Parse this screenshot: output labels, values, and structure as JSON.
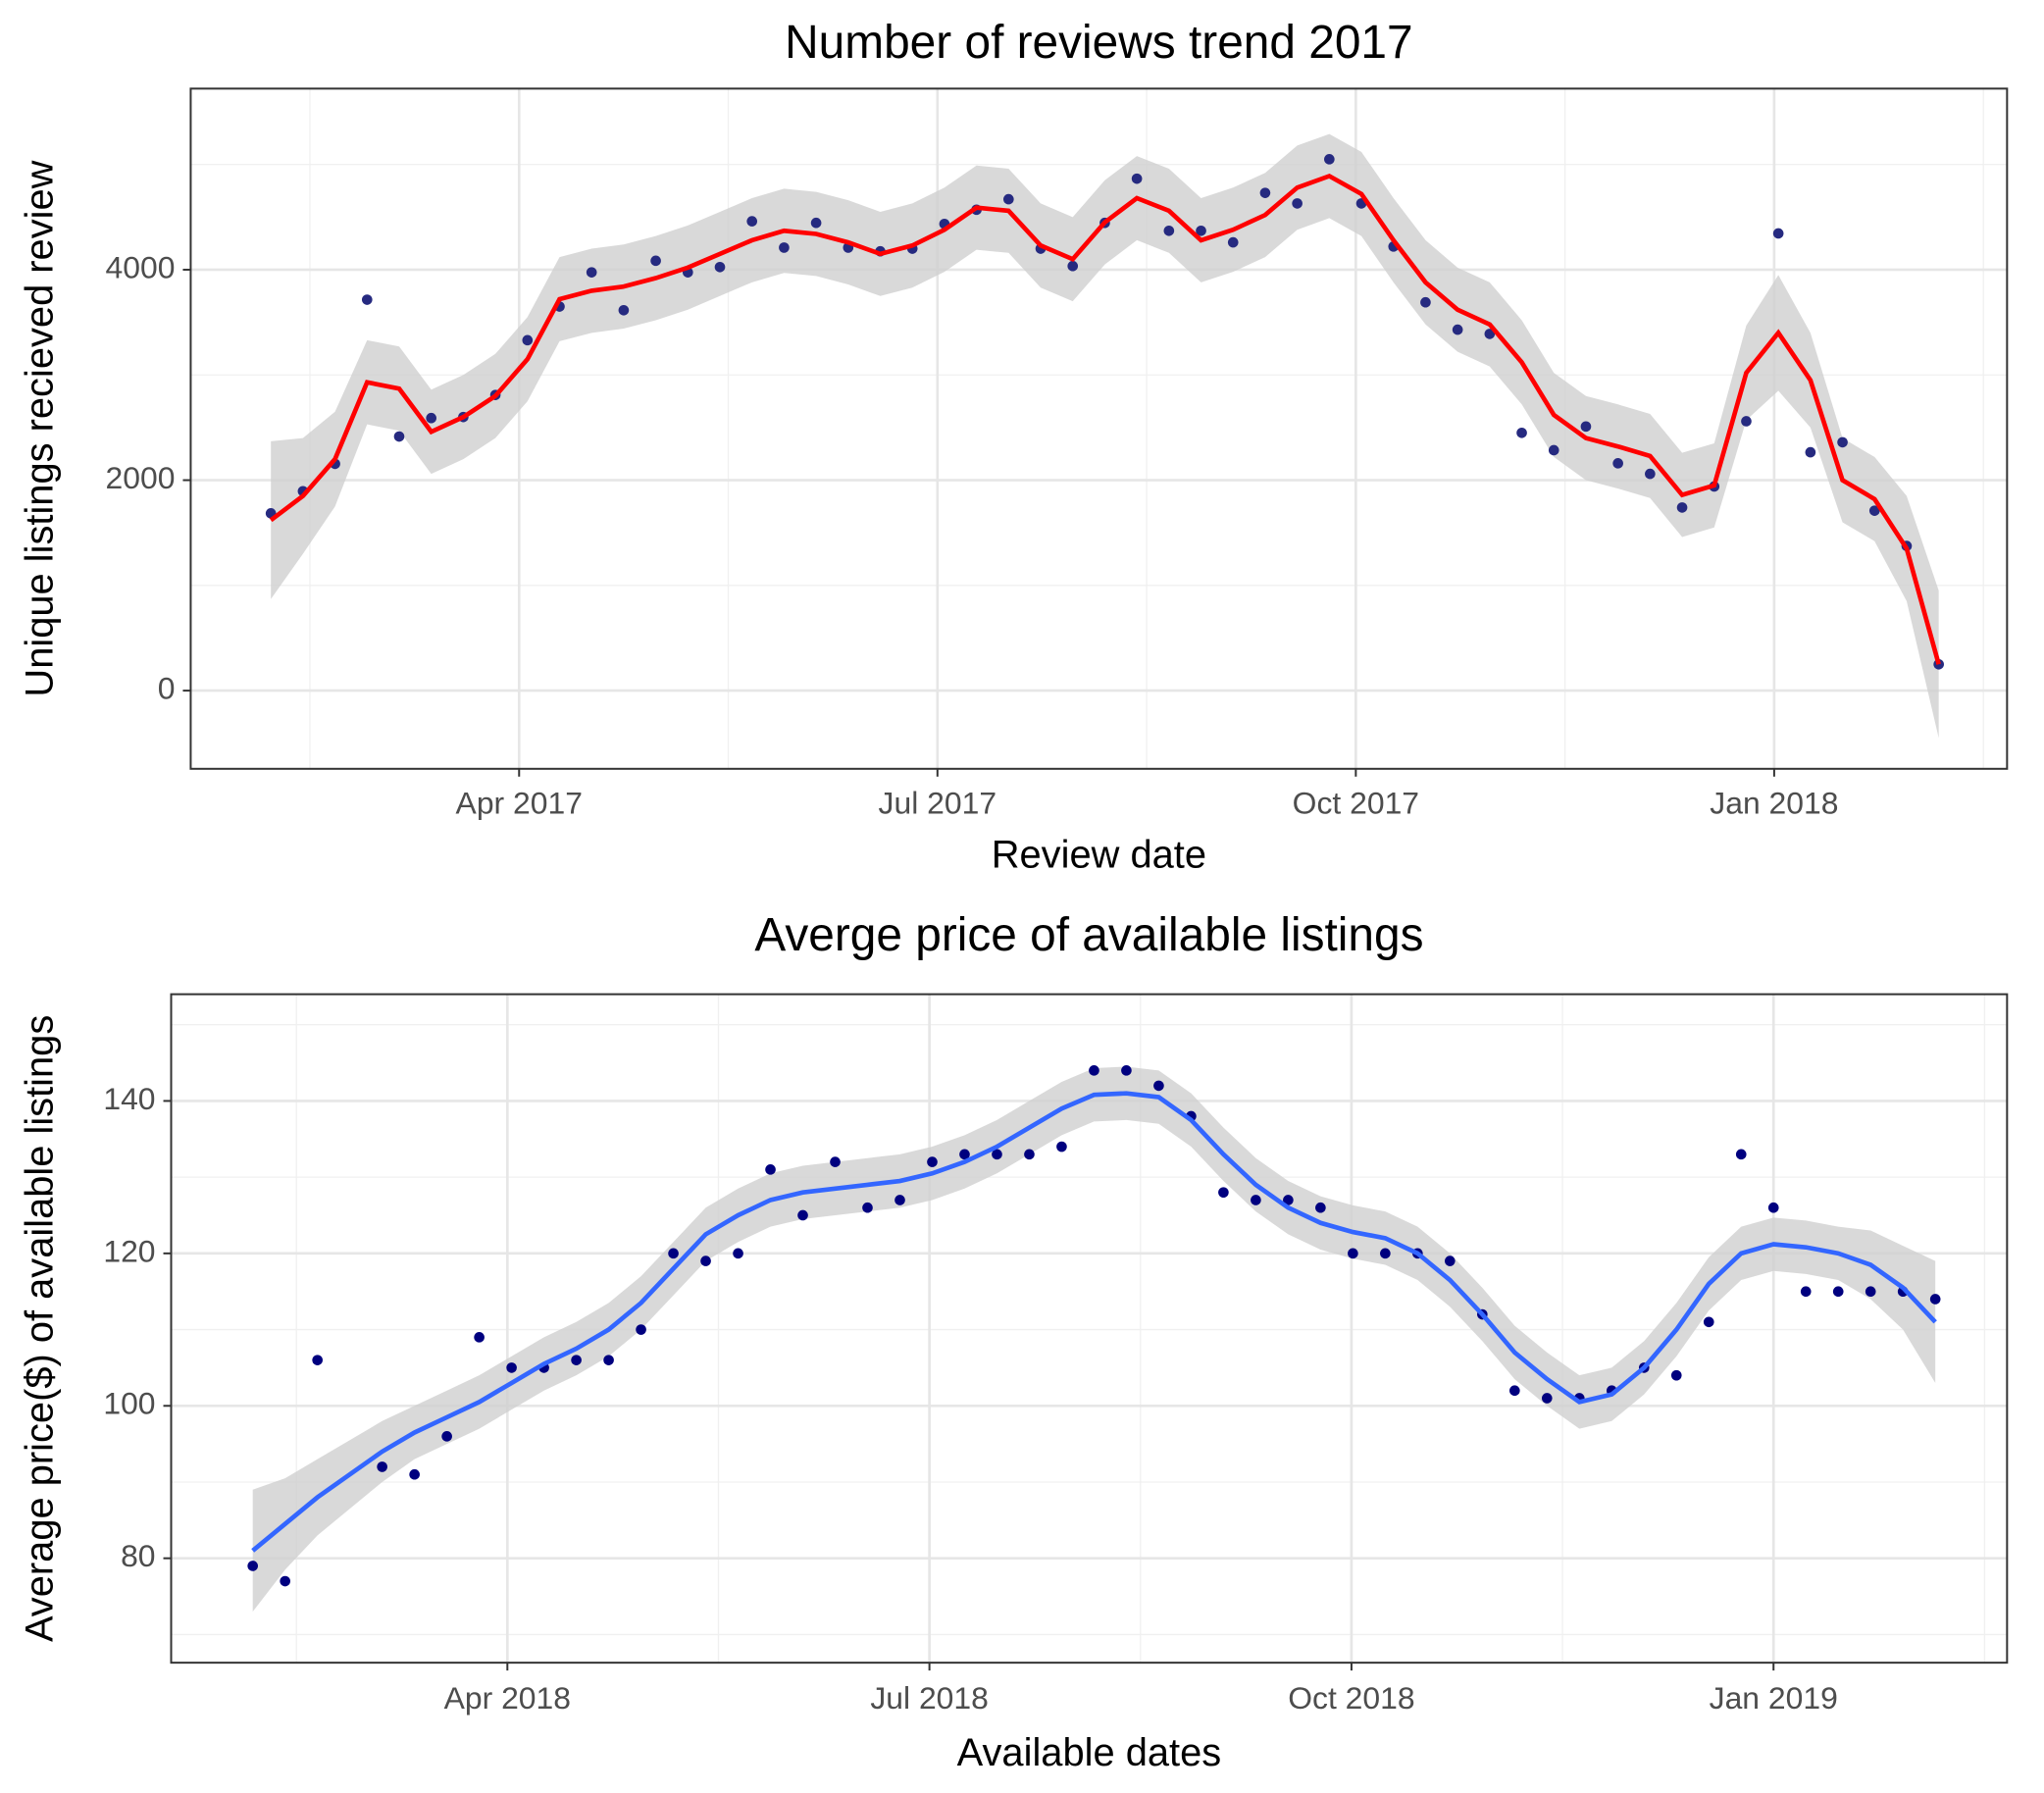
{
  "chart_data": [
    {
      "type": "scatter",
      "title": "Number of reviews trend 2017",
      "x_label": "Review date",
      "y_label": "Unique listings recieved review",
      "x": [
        1.22,
        1.45,
        1.68,
        1.91,
        2.14,
        2.37,
        2.6,
        2.83,
        3.06,
        3.29,
        3.52,
        3.75,
        3.98,
        4.21,
        4.44,
        4.67,
        4.9,
        5.13,
        5.36,
        5.59,
        5.82,
        6.05,
        6.28,
        6.51,
        6.74,
        6.97,
        7.2,
        7.43,
        7.66,
        7.89,
        8.12,
        8.35,
        8.58,
        8.81,
        9.04,
        9.27,
        9.5,
        9.73,
        9.96,
        10.19,
        10.42,
        10.65,
        10.88,
        11.11,
        11.34,
        11.57,
        11.8,
        12.03,
        12.26,
        12.49,
        12.72,
        12.95,
        13.18
      ],
      "values": [
        1685,
        1895,
        2155,
        3715,
        2415,
        2590,
        2600,
        2810,
        3330,
        3650,
        3975,
        3615,
        4085,
        3975,
        4025,
        4460,
        4210,
        4445,
        4210,
        4175,
        4200,
        4435,
        4570,
        4670,
        4200,
        4035,
        4445,
        4865,
        4370,
        4370,
        4260,
        4730,
        4630,
        5050,
        4630,
        4220,
        3690,
        3430,
        3390,
        2450,
        2285,
        2510,
        2160,
        2060,
        1740,
        1940,
        2560,
        4345,
        2265,
        2360,
        1710,
        1375,
        250
      ],
      "smooth": [
        1620,
        1850,
        2200,
        2930,
        2870,
        2460,
        2600,
        2800,
        3150,
        3720,
        3800,
        3840,
        3920,
        4020,
        4150,
        4280,
        4370,
        4340,
        4260,
        4150,
        4230,
        4380,
        4590,
        4560,
        4230,
        4100,
        4450,
        4680,
        4560,
        4280,
        4380,
        4520,
        4780,
        4890,
        4720,
        4280,
        3880,
        3620,
        3480,
        3120,
        2620,
        2400,
        2320,
        2230,
        1860,
        1950,
        3020,
        3400,
        2950,
        2000,
        1820,
        1350,
        250
      ],
      "lower": [
        870,
        1300,
        1750,
        2530,
        2470,
        2060,
        2200,
        2400,
        2750,
        3320,
        3400,
        3440,
        3520,
        3620,
        3750,
        3880,
        3970,
        3940,
        3860,
        3750,
        3830,
        3980,
        4190,
        4160,
        3830,
        3700,
        4050,
        4280,
        4160,
        3880,
        3980,
        4120,
        4380,
        4490,
        4320,
        3880,
        3480,
        3220,
        3080,
        2720,
        2220,
        2000,
        1920,
        1830,
        1460,
        1550,
        2570,
        2850,
        2500,
        1600,
        1420,
        850,
        -450
      ],
      "upper": [
        2370,
        2400,
        2650,
        3330,
        3270,
        2860,
        3000,
        3200,
        3550,
        4120,
        4200,
        4240,
        4320,
        4420,
        4550,
        4680,
        4770,
        4740,
        4660,
        4550,
        4630,
        4780,
        4990,
        4960,
        4630,
        4500,
        4850,
        5080,
        4960,
        4680,
        4780,
        4920,
        5180,
        5290,
        5120,
        4680,
        4280,
        4020,
        3880,
        3520,
        3020,
        2800,
        2720,
        2630,
        2260,
        2350,
        3470,
        3950,
        3400,
        2400,
        2220,
        1850,
        950
      ],
      "point_color": "#262a80",
      "line_color": "#ff0000",
      "band_color": "#cfcfcf",
      "grid": true,
      "xlim": [
        0.645,
        13.67
      ],
      "ylim": [
        -743,
        5721
      ],
      "xticks": [
        {
          "value": 3,
          "label": "Apr 2017"
        },
        {
          "value": 6,
          "label": "Jul 2017"
        },
        {
          "value": 9,
          "label": "Oct 2017"
        },
        {
          "value": 12,
          "label": "Jan 2018"
        }
      ],
      "yticks": [
        0,
        2000,
        4000
      ]
    },
    {
      "type": "scatter",
      "title": "Averge price of available listings",
      "x_label": "Available dates",
      "y_label": "Average price($) of available listings",
      "x": [
        1.19,
        1.42,
        1.65,
        2.11,
        2.34,
        2.57,
        2.8,
        3.03,
        3.26,
        3.49,
        3.72,
        3.95,
        4.18,
        4.41,
        4.64,
        4.87,
        5.1,
        5.33,
        5.56,
        5.79,
        6.02,
        6.25,
        6.48,
        6.71,
        6.94,
        7.17,
        7.4,
        7.63,
        7.86,
        8.09,
        8.32,
        8.55,
        8.78,
        9.01,
        9.24,
        9.47,
        9.7,
        9.93,
        10.16,
        10.39,
        10.62,
        10.85,
        11.08,
        11.31,
        11.54,
        11.77,
        12.0,
        12.23,
        12.46,
        12.69,
        12.92,
        13.15
      ],
      "values": [
        79,
        77,
        106,
        92,
        91,
        96,
        109,
        105,
        105,
        106,
        106,
        110,
        120,
        119,
        120,
        131,
        125,
        132,
        126,
        127,
        132,
        133,
        133,
        133,
        134,
        144,
        144,
        142,
        138,
        128,
        127,
        127,
        126,
        120,
        120,
        120,
        119,
        112,
        102,
        101,
        101,
        102,
        105,
        104,
        111,
        133,
        126,
        115,
        115,
        115,
        115,
        114
      ],
      "smooth": [
        81,
        84.5,
        88,
        94,
        96.5,
        98.5,
        100.5,
        103,
        105.5,
        107.5,
        110,
        113.5,
        118,
        122.5,
        125,
        127,
        128,
        128.5,
        129,
        129.5,
        130.5,
        132,
        134,
        136.5,
        139,
        140.8,
        141,
        140.5,
        137.5,
        133,
        129,
        126,
        124,
        122.8,
        122,
        120,
        116.5,
        112,
        107,
        103.5,
        100.5,
        101.5,
        105,
        110,
        116,
        120,
        121.2,
        120.8,
        120,
        118.5,
        115.5,
        111
      ],
      "lower": [
        73,
        78.5,
        83,
        90,
        93,
        95,
        97,
        99.5,
        102,
        104,
        106.5,
        110,
        114.5,
        119,
        121.5,
        123.5,
        124.5,
        125,
        125.5,
        126,
        127,
        128.5,
        130.5,
        133,
        135.5,
        137.3,
        137.5,
        137,
        134,
        129.5,
        125.5,
        122.5,
        120.5,
        119.3,
        118.5,
        116.5,
        113,
        108.5,
        103.5,
        100,
        97,
        98,
        101.5,
        106.5,
        112.5,
        116.5,
        117.7,
        117.3,
        116.5,
        114,
        110,
        103
      ],
      "upper": [
        89,
        90.5,
        93,
        98,
        100,
        102,
        104,
        106.5,
        109,
        111,
        113.5,
        117,
        121.5,
        126,
        128.5,
        130.5,
        131.5,
        132,
        132.5,
        133,
        134,
        135.5,
        137.5,
        140,
        142.5,
        144.3,
        144.5,
        144,
        141,
        136.5,
        132.5,
        129.5,
        127.5,
        126.3,
        125.5,
        123.5,
        120,
        115.5,
        110.5,
        107,
        104,
        105,
        108.5,
        113.5,
        119.5,
        123.5,
        124.7,
        124.3,
        123.5,
        123,
        121,
        119
      ],
      "point_color": "#00007f",
      "line_color": "#3366ff",
      "band_color": "#cfcfcf",
      "grid": true,
      "xlim": [
        0.61,
        13.66
      ],
      "ylim": [
        66.3,
        154
      ],
      "xticks": [
        {
          "value": 3,
          "label": "Apr 2018"
        },
        {
          "value": 6,
          "label": "Jul 2018"
        },
        {
          "value": 9,
          "label": "Oct 2018"
        },
        {
          "value": 12,
          "label": "Jan 2019"
        }
      ],
      "yticks": [
        80,
        100,
        120,
        140
      ]
    }
  ]
}
